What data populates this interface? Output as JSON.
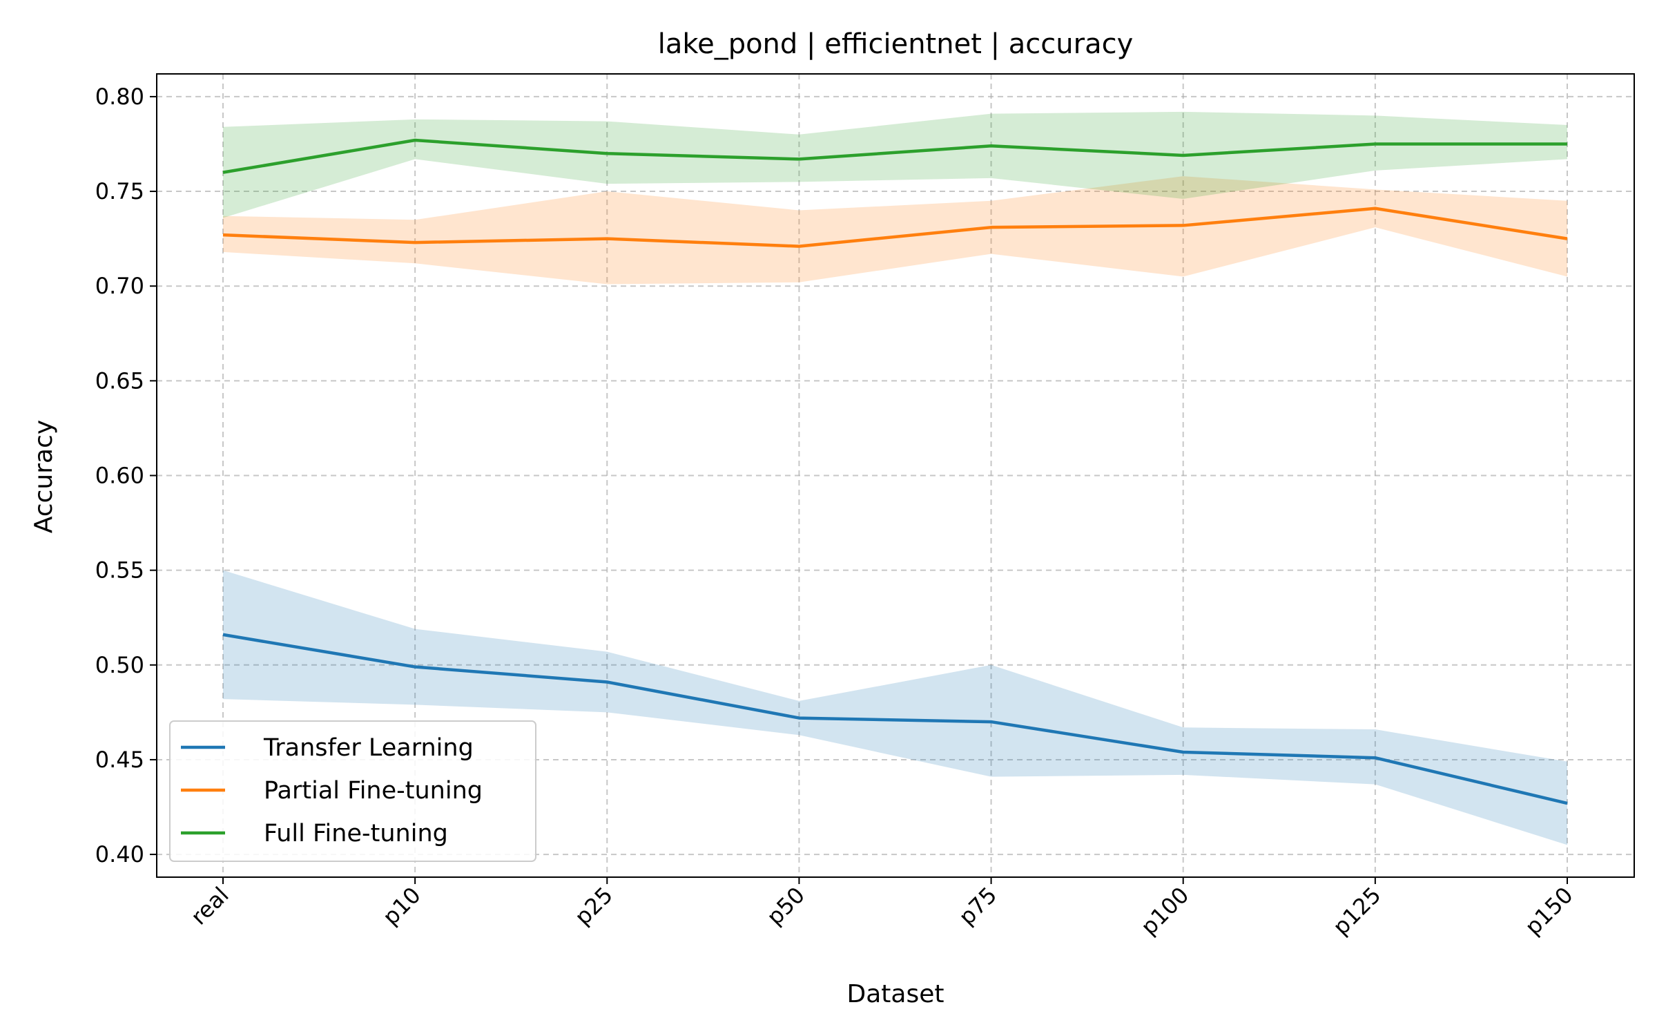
{
  "chart_data": {
    "type": "line",
    "title": "lake_pond | efficientnet | accuracy",
    "xlabel": "Dataset",
    "ylabel": "Accuracy",
    "categories": [
      "real",
      "p10",
      "p25",
      "p50",
      "p75",
      "p100",
      "p125",
      "p150"
    ],
    "ylim": [
      0.388,
      0.812
    ],
    "yticks": [
      "0.40",
      "0.45",
      "0.50",
      "0.55",
      "0.60",
      "0.65",
      "0.70",
      "0.75",
      "0.80"
    ],
    "grid": true,
    "legend_position": "lower-left",
    "series": [
      {
        "name": "Transfer Learning",
        "color": "#1f77b4",
        "values": [
          0.516,
          0.499,
          0.491,
          0.472,
          0.47,
          0.454,
          0.451,
          0.427
        ],
        "upper": [
          0.55,
          0.519,
          0.507,
          0.481,
          0.5,
          0.467,
          0.466,
          0.449
        ],
        "lower": [
          0.482,
          0.479,
          0.475,
          0.463,
          0.441,
          0.442,
          0.437,
          0.405
        ]
      },
      {
        "name": "Partial Fine-tuning",
        "color": "#ff7f0e",
        "values": [
          0.727,
          0.723,
          0.725,
          0.721,
          0.731,
          0.732,
          0.741,
          0.725
        ],
        "upper": [
          0.737,
          0.735,
          0.75,
          0.74,
          0.745,
          0.758,
          0.751,
          0.745
        ],
        "lower": [
          0.718,
          0.712,
          0.701,
          0.702,
          0.717,
          0.705,
          0.731,
          0.705
        ]
      },
      {
        "name": "Full Fine-tuning",
        "color": "#2ca02c",
        "values": [
          0.76,
          0.777,
          0.77,
          0.767,
          0.774,
          0.769,
          0.775,
          0.775
        ],
        "upper": [
          0.784,
          0.788,
          0.787,
          0.78,
          0.791,
          0.792,
          0.79,
          0.785
        ],
        "lower": [
          0.736,
          0.767,
          0.754,
          0.755,
          0.757,
          0.746,
          0.761,
          0.767
        ]
      }
    ]
  }
}
